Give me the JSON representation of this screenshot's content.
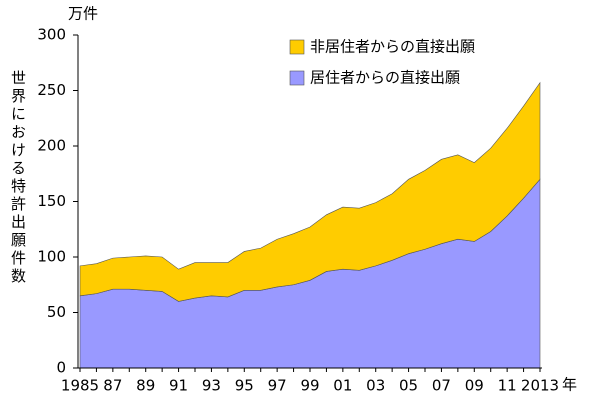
{
  "chart_data": {
    "type": "stacked-area",
    "y_unit": "万件",
    "x_unit": "年",
    "y_label": "世界における特許出願件数",
    "categories": [
      "1985",
      null,
      "87",
      null,
      "89",
      null,
      "91",
      null,
      "93",
      null,
      "95",
      null,
      "97",
      null,
      "99",
      null,
      "01",
      null,
      "03",
      null,
      "05",
      null,
      "07",
      null,
      "09",
      null,
      "11",
      null,
      "2013"
    ],
    "series": [
      {
        "name": "居住者からの直接出願",
        "color": "#9999ff",
        "values": [
          65,
          67,
          71,
          71,
          70,
          69,
          60,
          63,
          65,
          64,
          70,
          70,
          73,
          75,
          79,
          87,
          89,
          88,
          92,
          97,
          103,
          107,
          112,
          116,
          114,
          123,
          137,
          153,
          170
        ]
      },
      {
        "name": "非居住者からの直接出願",
        "color": "#ffcc00",
        "values": [
          27,
          27,
          28,
          29,
          31,
          31,
          29,
          32,
          30,
          31,
          35,
          38,
          43,
          46,
          48,
          51,
          56,
          56,
          57,
          60,
          67,
          71,
          76,
          76,
          71,
          75,
          79,
          83,
          87
        ]
      }
    ],
    "ylim": [
      0,
      300
    ],
    "yticks": [
      0,
      50,
      100,
      150,
      200,
      250,
      300
    ]
  }
}
